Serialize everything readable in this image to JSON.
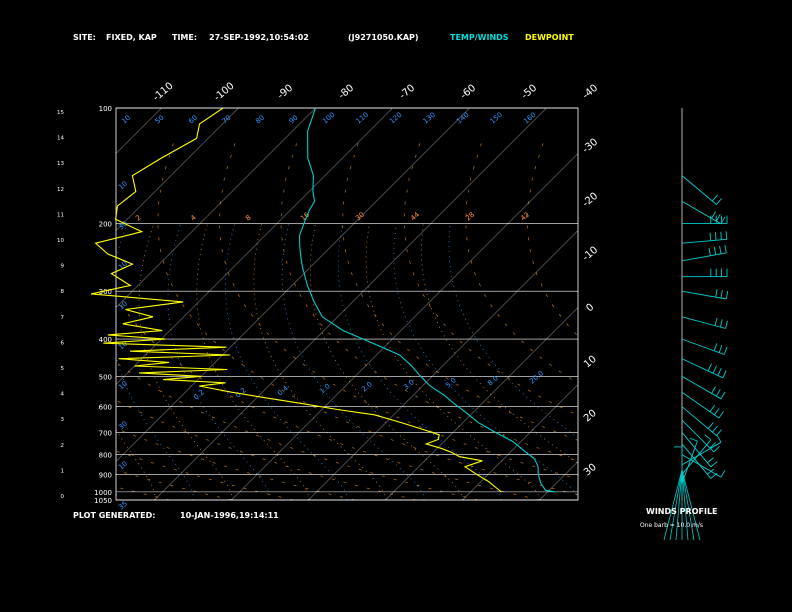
{
  "header": {
    "site_label": "SITE:",
    "site_value": "FIXED, KAP",
    "time_label": "TIME:",
    "time_value": "27-SEP-1992,10:54:02",
    "file_value": "(J9271050.KAP)",
    "legend_temp": "TEMP/WINDS",
    "legend_dew": "DEWPOINT"
  },
  "footer": {
    "generated_label": "PLOT GENERATED:",
    "generated_value": "10-JAN-1996,19:14:11"
  },
  "winds": {
    "title": "WINDS PROFILE",
    "note": "One barb = 10.0 m/s"
  },
  "colors": {
    "background": "#000000",
    "grid": "#ffffff",
    "temp": "#00cccc",
    "dew": "#ffff00",
    "dry_adiabat": "#ff9933",
    "mixing_ratio": "#3399ff",
    "moist_adiabat": "#ff9933"
  },
  "chart_data": {
    "type": "line",
    "title": "",
    "pressure_labels": [
      "100",
      "200",
      "300",
      "400",
      "500",
      "600",
      "700",
      "800",
      "900",
      "1000",
      "1050"
    ],
    "pressure_levels": [
      100,
      200,
      300,
      400,
      500,
      600,
      700,
      800,
      900,
      1000,
      1050
    ],
    "height_labels": [
      "15",
      "14",
      "13",
      "12",
      "11",
      "10",
      "9",
      "8",
      "7",
      "6",
      "5",
      "4",
      "3",
      "2",
      "1",
      "0"
    ],
    "top_temp_labels": [
      "-110",
      "-100",
      "-90",
      "-80",
      "-70",
      "-60",
      "-50",
      "-40"
    ],
    "right_temp_labels": [
      "-30",
      "-20",
      "-10",
      "0",
      "10",
      "20",
      "30"
    ],
    "mixing_ratio_labels": [
      "10",
      "50",
      "60",
      "70",
      "80",
      "90",
      "100",
      "110",
      "120",
      "130",
      "140",
      "150",
      "160"
    ],
    "left_theta_labels": [
      "10",
      "30",
      "10",
      "10",
      "10",
      "10",
      "30",
      "10",
      "35"
    ],
    "row_200_labels": [
      "2",
      "4",
      "8",
      "16",
      "30",
      "44",
      "28",
      "42"
    ],
    "moist_labels": [
      "0.2",
      "0.2",
      "0.4",
      "1.0",
      "2.0",
      "3.0",
      "5.0",
      "8.0",
      "20.0"
    ],
    "series": [
      {
        "name": "TEMP/WINDS",
        "x": [
          -60.0,
          -58.0,
          -54.5,
          -51.5,
          -49.5,
          -48.0,
          -47.5,
          -46.5,
          -45.5,
          -44.0,
          -42.5,
          -41.0,
          -38.0,
          -35.0,
          -32.0,
          -27.5,
          -22.0,
          -17.0,
          -14.0,
          -11.5,
          -9.0,
          -6.0,
          -3.5,
          -1.0,
          2.0,
          5.5,
          9.0,
          11.5,
          14.0,
          15.5,
          16.5,
          18.0,
          19.5,
          21.0
        ],
        "y": [
          100,
          115,
          135,
          150,
          165,
          175,
          185,
          200,
          215,
          230,
          245,
          260,
          290,
          320,
          350,
          380,
          410,
          440,
          470,
          500,
          530,
          560,
          590,
          620,
          660,
          700,
          740,
          780,
          820,
          860,
          900,
          950,
          990,
          1000
        ]
      },
      {
        "name": "DEWPOINT",
        "x": [
          -72.0,
          -73.0,
          -71.5,
          -73.5,
          -75.0,
          -72.5,
          -73.0,
          -71.5,
          -66.5,
          -71.0,
          -68.0,
          -63.5,
          -65.0,
          -61.0,
          -65.0,
          -52.0,
          -58.5,
          -54.0,
          -57.0,
          -51.0,
          -57.5,
          -49.5,
          -57.0,
          -40.5,
          -52.5,
          -39.0,
          -53.0,
          -46.0,
          -50.0,
          -37.5,
          -48.5,
          -40.0,
          -44.5,
          -36.0,
          -39.0,
          -34.0,
          -28.5,
          -23.0,
          -18.0,
          -12.5,
          -8.0,
          -4.0,
          -1.5,
          -1.0,
          -2.0,
          0.5,
          2.5,
          4.0,
          7.5,
          6.0,
          8.5,
          11.0,
          13.0,
          14.0
        ],
        "y": [
          100,
          110,
          120,
          135,
          150,
          165,
          180,
          195,
          210,
          225,
          240,
          255,
          270,
          290,
          305,
          320,
          335,
          350,
          365,
          380,
          390,
          400,
          410,
          420,
          430,
          440,
          450,
          460,
          470,
          480,
          490,
          500,
          510,
          520,
          530,
          550,
          570,
          590,
          610,
          630,
          660,
          690,
          710,
          730,
          750,
          770,
          790,
          810,
          830,
          860,
          900,
          940,
          980,
          1000
        ]
      }
    ],
    "wind_barbs": {
      "pressure": [
        150,
        175,
        200,
        225,
        250,
        275,
        300,
        350,
        400,
        450,
        500,
        550,
        600,
        650,
        700,
        750,
        800,
        850,
        900,
        950,
        1000
      ],
      "direction_deg": [
        310,
        300,
        270,
        265,
        260,
        270,
        280,
        285,
        290,
        295,
        300,
        305,
        310,
        315,
        320,
        320,
        300,
        240,
        220,
        200,
        180
      ],
      "speed_ms": [
        20,
        25,
        35,
        40,
        40,
        35,
        30,
        25,
        30,
        35,
        30,
        30,
        25,
        20,
        20,
        15,
        10,
        10,
        10,
        10,
        5
      ]
    }
  }
}
